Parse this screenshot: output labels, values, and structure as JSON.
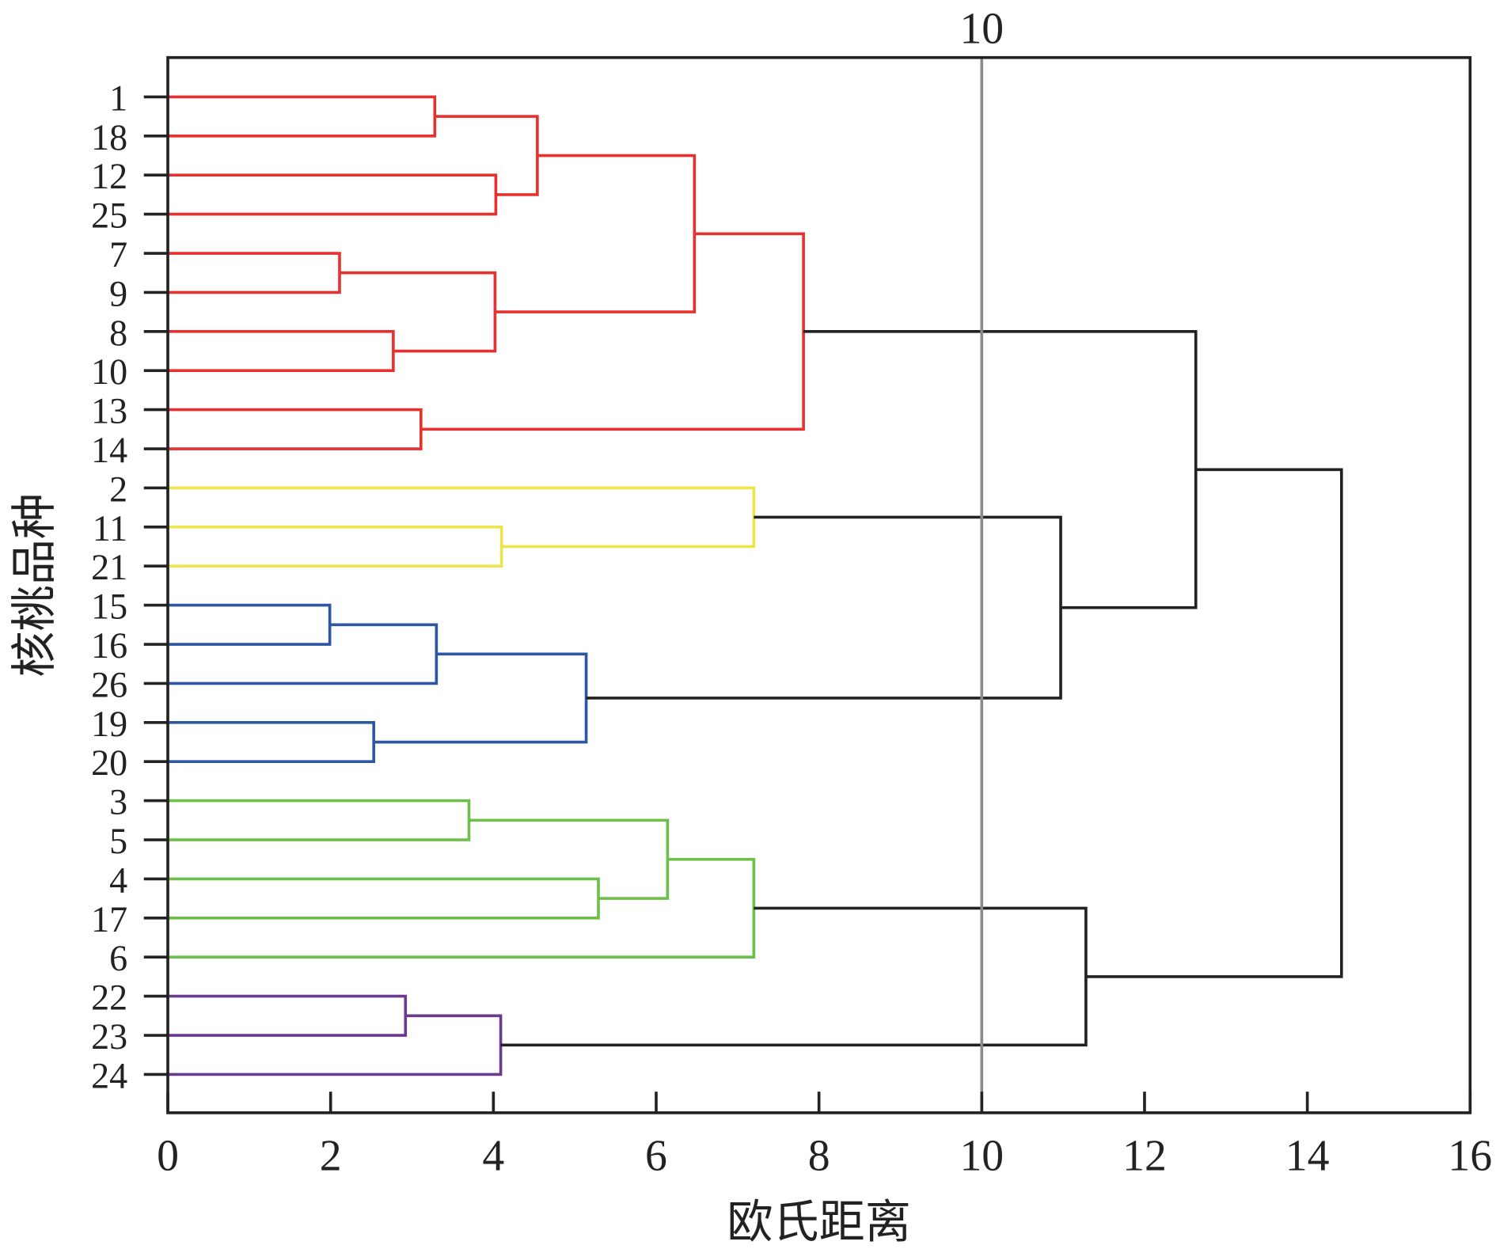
{
  "chart_data": {
    "type": "dendrogram",
    "title": "",
    "xlabel": "欧氏距离",
    "ylabel": "核桃品种",
    "xlim": [
      0,
      16
    ],
    "xticks": [
      "0",
      "2",
      "4",
      "6",
      "8",
      "10",
      "12",
      "14",
      "16"
    ],
    "threshold": {
      "value": 10,
      "label": "10",
      "color": "#8a8a8a"
    },
    "leaves": [
      "1",
      "18",
      "12",
      "25",
      "7",
      "9",
      "8",
      "10",
      "13",
      "14",
      "2",
      "11",
      "21",
      "15",
      "16",
      "26",
      "19",
      "20",
      "3",
      "5",
      "4",
      "17",
      "6",
      "22",
      "23",
      "24"
    ],
    "colors": {
      "red": "#e8312f",
      "yellow": "#ece64a",
      "blue": "#2d56a3",
      "green": "#6cc04a",
      "purple": "#6a3a8f",
      "black": "#222222"
    },
    "merges": [
      {
        "id": "m1",
        "children": [
          "1",
          "18"
        ],
        "distance": 3.28,
        "color": "red"
      },
      {
        "id": "m2",
        "children": [
          "12",
          "25"
        ],
        "distance": 4.03,
        "color": "red"
      },
      {
        "id": "m3",
        "children": [
          "m1",
          "m2"
        ],
        "distance": 4.54,
        "color": "red"
      },
      {
        "id": "m4",
        "children": [
          "7",
          "9"
        ],
        "distance": 2.11,
        "color": "red"
      },
      {
        "id": "m5",
        "children": [
          "8",
          "10"
        ],
        "distance": 2.77,
        "color": "red"
      },
      {
        "id": "m6",
        "children": [
          "m4",
          "m5"
        ],
        "distance": 4.02,
        "color": "red"
      },
      {
        "id": "m7",
        "children": [
          "m3",
          "m6"
        ],
        "distance": 6.47,
        "color": "red"
      },
      {
        "id": "m8",
        "children": [
          "13",
          "14"
        ],
        "distance": 3.11,
        "color": "red"
      },
      {
        "id": "m9",
        "children": [
          "m7",
          "m8"
        ],
        "distance": 7.81,
        "color": "red"
      },
      {
        "id": "m10",
        "children": [
          "11",
          "21"
        ],
        "distance": 4.1,
        "color": "yellow"
      },
      {
        "id": "m11",
        "children": [
          "2",
          "m10"
        ],
        "distance": 7.2,
        "color": "yellow"
      },
      {
        "id": "m12",
        "children": [
          "15",
          "16"
        ],
        "distance": 1.99,
        "color": "blue"
      },
      {
        "id": "m13",
        "children": [
          "m12",
          "26"
        ],
        "distance": 3.3,
        "color": "blue"
      },
      {
        "id": "m14",
        "children": [
          "19",
          "20"
        ],
        "distance": 2.53,
        "color": "blue"
      },
      {
        "id": "m15",
        "children": [
          "m13",
          "m14"
        ],
        "distance": 5.14,
        "color": "blue"
      },
      {
        "id": "m16",
        "children": [
          "m11",
          "m15"
        ],
        "distance": 10.97,
        "color": "black"
      },
      {
        "id": "m17",
        "children": [
          "m9",
          "m16"
        ],
        "distance": 12.63,
        "color": "black"
      },
      {
        "id": "m18",
        "children": [
          "3",
          "5"
        ],
        "distance": 3.7,
        "color": "green"
      },
      {
        "id": "m19",
        "children": [
          "4",
          "17"
        ],
        "distance": 5.29,
        "color": "green"
      },
      {
        "id": "m20",
        "children": [
          "m18",
          "m19"
        ],
        "distance": 6.14,
        "color": "green"
      },
      {
        "id": "m21",
        "children": [
          "m20",
          "6"
        ],
        "distance": 7.2,
        "color": "green"
      },
      {
        "id": "m22",
        "children": [
          "22",
          "23"
        ],
        "distance": 2.92,
        "color": "purple"
      },
      {
        "id": "m23",
        "children": [
          "m22",
          "24"
        ],
        "distance": 4.09,
        "color": "purple"
      },
      {
        "id": "m24",
        "children": [
          "m21",
          "m23"
        ],
        "distance": 11.28,
        "color": "black"
      },
      {
        "id": "m25",
        "children": [
          "m17",
          "m24"
        ],
        "distance": 14.42,
        "color": "black"
      }
    ]
  }
}
